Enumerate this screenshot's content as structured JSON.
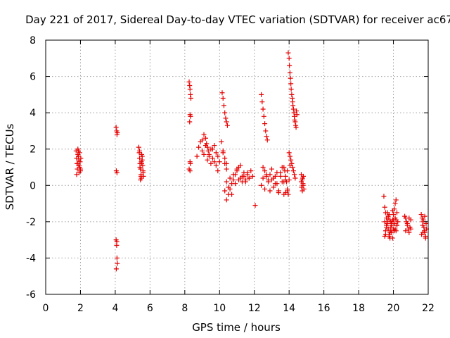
{
  "chart_data": {
    "type": "scatter",
    "title": "Day 221 of 2017, Sidereal Day-to-day VTEC variation (SDTVAR) for receiver ac67",
    "xlabel": "GPS time / hours",
    "ylabel": "SDTVAR / TECUs",
    "xlim": [
      0,
      22
    ],
    "ylim": [
      -6,
      8
    ],
    "xticks": [
      0,
      2,
      4,
      6,
      8,
      10,
      12,
      14,
      16,
      18,
      20,
      22
    ],
    "yticks": [
      -6,
      -4,
      -2,
      0,
      2,
      4,
      6,
      8
    ],
    "grid": true,
    "marker": "plus",
    "color": "#e60000",
    "series": [
      {
        "name": "SDTVAR",
        "x": [
          1.75,
          1.78,
          1.8,
          1.82,
          1.85,
          1.88,
          1.9,
          1.92,
          1.95,
          1.98,
          2.0,
          2.02,
          1.78,
          1.85,
          1.9,
          1.95,
          2.0,
          1.82,
          1.88,
          1.93,
          4.05,
          4.08,
          4.1,
          4.12,
          4.06,
          4.1,
          4.05,
          4.08,
          4.1,
          4.12,
          4.06,
          4.09,
          5.35,
          5.38,
          5.4,
          5.42,
          5.45,
          5.48,
          5.5,
          5.52,
          5.55,
          5.58,
          5.6,
          5.62,
          5.4,
          5.45,
          5.5,
          5.55,
          5.6,
          5.42,
          5.48,
          5.52,
          8.25,
          8.28,
          8.3,
          8.32,
          8.35,
          8.3,
          8.33,
          8.28,
          8.3,
          8.32,
          8.25,
          8.3,
          8.7,
          8.8,
          8.9,
          9.0,
          9.1,
          9.2,
          9.25,
          9.3,
          9.35,
          9.4,
          9.5,
          9.6,
          9.7,
          9.8,
          9.9,
          10.0,
          10.1,
          10.2,
          10.3,
          10.4,
          9.0,
          9.1,
          9.2,
          9.3,
          9.4,
          9.5,
          9.6,
          9.7,
          9.8,
          9.9,
          10.15,
          10.2,
          10.25,
          10.3,
          10.35,
          10.4,
          10.45,
          10.2,
          10.3,
          10.4,
          10.3,
          10.4,
          10.5,
          10.6,
          10.7,
          10.8,
          10.9,
          11.0,
          11.1,
          11.2,
          11.3,
          11.4,
          11.5,
          11.6,
          11.7,
          11.8,
          11.9,
          10.4,
          10.5,
          10.6,
          10.7,
          10.8,
          10.9,
          11.0,
          11.1,
          11.2,
          11.3,
          11.4,
          11.5,
          11.6,
          11.7,
          12.05,
          12.4,
          12.45,
          12.5,
          12.55,
          12.6,
          12.65,
          12.7,
          12.75,
          12.4,
          12.5,
          12.6,
          12.7,
          12.8,
          12.9,
          13.0,
          13.1,
          13.2,
          13.3,
          13.4,
          13.5,
          13.6,
          13.7,
          13.8,
          13.9,
          12.5,
          12.6,
          12.7,
          12.8,
          12.9,
          13.0,
          13.1,
          13.2,
          13.3,
          13.4,
          13.5,
          13.6,
          13.7,
          13.8,
          13.9,
          13.7,
          13.75,
          13.8,
          13.85,
          13.9,
          13.95,
          14.0,
          14.05,
          13.95,
          14.0,
          14.02,
          14.05,
          14.08,
          14.1,
          14.12,
          14.15,
          14.18,
          14.2,
          14.22,
          14.25,
          14.28,
          14.3,
          14.32,
          14.35,
          14.38,
          14.4,
          14.42,
          14.45,
          14.0,
          14.05,
          14.1,
          14.15,
          14.2,
          14.25,
          14.3,
          14.35,
          14.7,
          14.75,
          14.8,
          14.85,
          14.72,
          14.78,
          14.82,
          14.7,
          14.76,
          14.8,
          19.45,
          19.5,
          19.55,
          19.6,
          19.65,
          19.7,
          19.75,
          19.8,
          19.85,
          19.9,
          19.95,
          20.0,
          20.05,
          20.1,
          20.15,
          20.2,
          20.25,
          19.5,
          19.55,
          19.6,
          19.65,
          19.7,
          19.75,
          19.8,
          19.85,
          19.9,
          19.95,
          20.0,
          20.05,
          20.1,
          20.15,
          20.2,
          19.5,
          19.6,
          19.7,
          19.8,
          19.9,
          20.0,
          20.1,
          20.2,
          19.55,
          19.65,
          19.75,
          19.85,
          19.95,
          20.05,
          20.15,
          20.65,
          20.7,
          20.75,
          20.8,
          20.85,
          20.9,
          20.95,
          21.0,
          20.7,
          20.8,
          20.9,
          21.0,
          21.6,
          21.65,
          21.7,
          21.75,
          21.8,
          21.85,
          21.9,
          21.62,
          21.68,
          21.72,
          21.78,
          21.84,
          21.88,
          21.7,
          21.8
        ],
        "y": [
          1.9,
          1.5,
          1.2,
          0.9,
          2.0,
          1.6,
          1.1,
          0.7,
          1.8,
          1.3,
          0.9,
          1.5,
          0.6,
          1.7,
          1.4,
          1.0,
          0.8,
          1.2,
          1.9,
          1.1,
          3.2,
          3.0,
          2.8,
          2.9,
          0.8,
          0.7,
          -3.0,
          -3.3,
          -4.0,
          -4.3,
          -4.6,
          -3.1,
          2.1,
          1.8,
          1.5,
          1.2,
          0.9,
          0.6,
          0.4,
          1.7,
          1.4,
          1.1,
          0.8,
          0.5,
          1.9,
          0.3,
          1.3,
          1.6,
          0.7,
          1.0,
          0.5,
          1.2,
          5.7,
          5.5,
          5.3,
          5.0,
          4.8,
          3.9,
          3.8,
          3.5,
          1.3,
          1.2,
          0.9,
          0.8,
          1.6,
          2.1,
          2.4,
          2.5,
          2.8,
          2.6,
          2.3,
          2.1,
          1.9,
          1.7,
          2.0,
          1.5,
          2.2,
          1.8,
          1.6,
          1.3,
          2.4,
          1.9,
          1.2,
          0.9,
          1.9,
          1.7,
          2.2,
          1.4,
          1.6,
          1.2,
          2.0,
          1.3,
          1.1,
          0.8,
          5.1,
          4.8,
          4.4,
          4.0,
          3.7,
          3.5,
          3.3,
          1.8,
          1.5,
          1.2,
          -0.3,
          0.2,
          -0.1,
          0.4,
          -0.5,
          0.6,
          0.1,
          0.9,
          0.3,
          1.1,
          0.5,
          0.7,
          0.2,
          0.6,
          0.4,
          0.8,
          0.5,
          -0.8,
          -0.5,
          -0.2,
          0.1,
          0.3,
          0.6,
          0.8,
          1.0,
          0.4,
          0.2,
          0.5,
          0.3,
          0.7,
          0.4,
          -1.1,
          5.0,
          4.6,
          4.2,
          3.8,
          3.4,
          3.0,
          2.7,
          2.5,
          0.0,
          0.4,
          -0.2,
          0.6,
          0.2,
          -0.3,
          0.3,
          -0.1,
          0.5,
          0.1,
          -0.4,
          0.7,
          0.2,
          -0.5,
          0.3,
          -0.2,
          1.0,
          0.8,
          0.5,
          0.3,
          0.6,
          0.9,
          0.4,
          0.1,
          0.7,
          -0.3,
          0.5,
          1.0,
          0.2,
          -0.4,
          0.8,
          1.0,
          0.8,
          0.5,
          0.2,
          -0.3,
          -0.5,
          0.3,
          1.1,
          7.3,
          7.0,
          6.6,
          6.2,
          5.9,
          5.6,
          5.3,
          5.0,
          4.8,
          4.6,
          4.4,
          4.2,
          4.0,
          3.8,
          3.6,
          3.5,
          3.3,
          3.2,
          4.1,
          3.9,
          1.8,
          1.6,
          1.4,
          1.2,
          1.0,
          0.8,
          0.6,
          0.4,
          0.6,
          0.3,
          0.0,
          -0.2,
          -0.1,
          0.4,
          0.5,
          0.2,
          -0.3,
          0.1,
          -0.6,
          -1.2,
          -1.5,
          -1.8,
          -2.1,
          -2.4,
          -2.7,
          -2.9,
          -2.5,
          -2.2,
          -1.9,
          -1.6,
          -1.3,
          -1.0,
          -0.8,
          -1.5,
          -2.0,
          -2.8,
          -2.5,
          -2.2,
          -2.0,
          -1.8,
          -1.6,
          -1.9,
          -2.3,
          -2.6,
          -2.9,
          -2.4,
          -2.1,
          -1.8,
          -2.5,
          -2.2,
          -2.0,
          -2.3,
          -1.7,
          -2.6,
          -2.1,
          -1.9,
          -2.4,
          -2.2,
          -2.7,
          -1.5,
          -2.8,
          -2.0,
          -1.4,
          -2.5,
          -1.9,
          -1.7,
          -1.8,
          -2.0,
          -2.2,
          -2.4,
          -2.6,
          -2.3,
          -1.9,
          -2.5,
          -2.1,
          -1.8,
          -2.4,
          -1.6,
          -1.8,
          -2.0,
          -2.3,
          -2.6,
          -2.9,
          -2.4,
          -2.7,
          -2.2,
          -1.9,
          -2.5,
          -2.8,
          -2.1,
          -2.6,
          -1.7
        ]
      }
    ]
  }
}
